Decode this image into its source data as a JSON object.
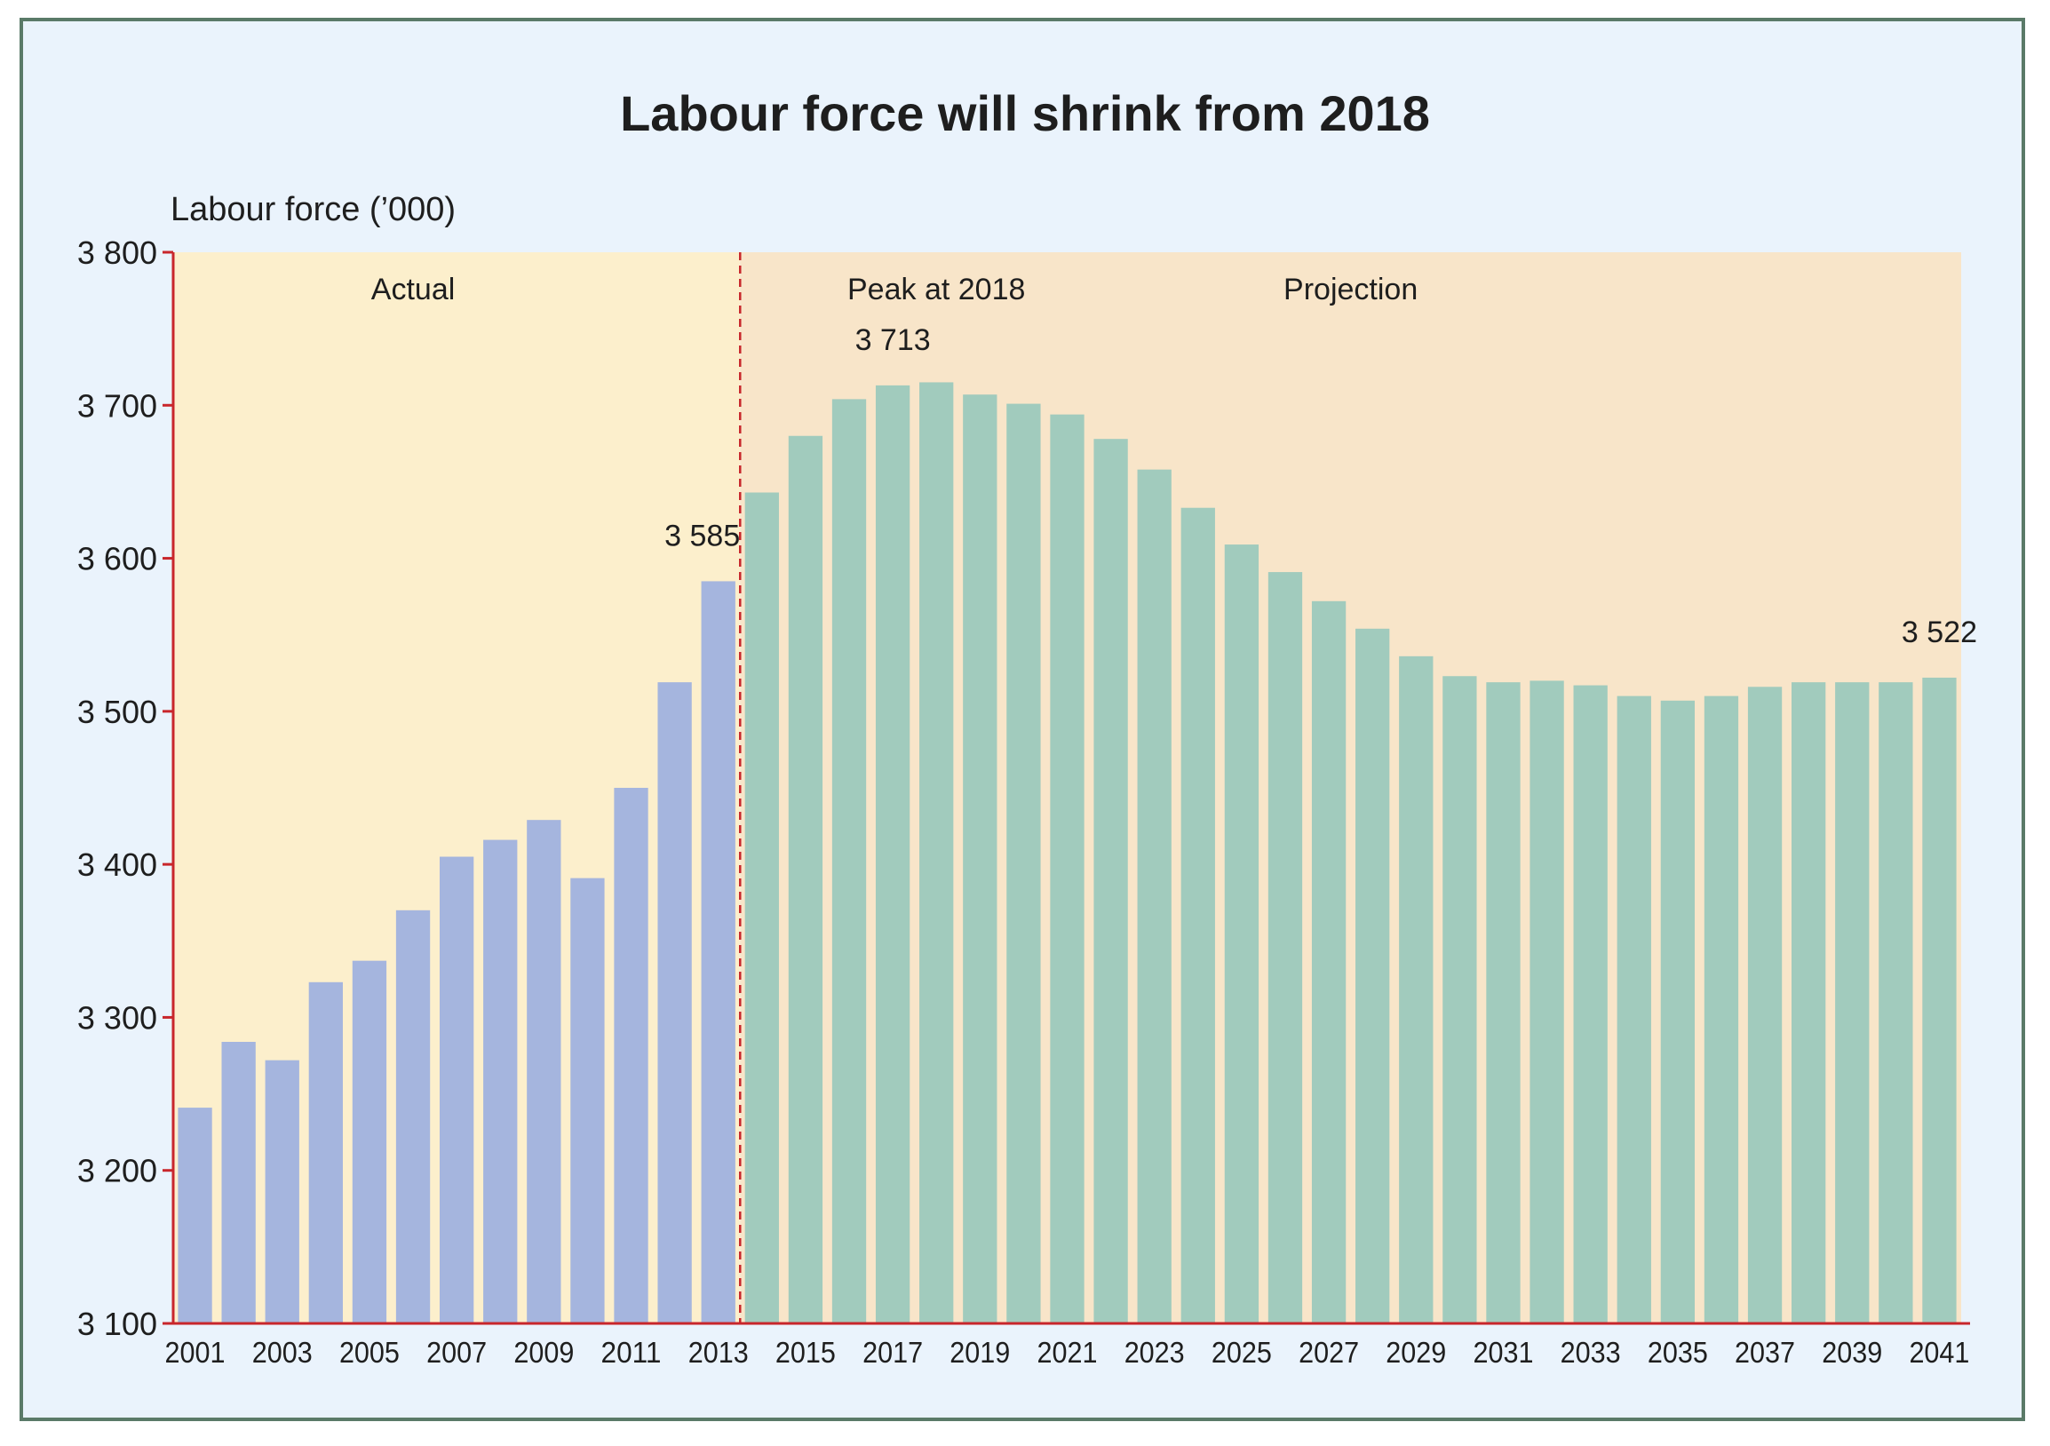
{
  "chart_data": {
    "type": "bar",
    "title": "Labour force will shrink from 2018",
    "ylabel": "Labour force (’000)",
    "xlabel": "",
    "ylim": [
      3100,
      3800
    ],
    "yticks": [
      3100,
      3200,
      3300,
      3400,
      3500,
      3600,
      3700,
      3800
    ],
    "ytick_labels": [
      "3 100",
      "3 200",
      "3 300",
      "3 400",
      "3 500",
      "3 600",
      "3 700",
      "3 800"
    ],
    "xtick_labels": [
      "2001",
      "2003",
      "2005",
      "2007",
      "2009",
      "2011",
      "2013",
      "2015",
      "2017",
      "2019",
      "2021",
      "2023",
      "2025",
      "2027",
      "2029",
      "2031",
      "2033",
      "2035",
      "2037",
      "2039",
      "2041"
    ],
    "categories": [
      "2001",
      "2002",
      "2003",
      "2004",
      "2005",
      "2006",
      "2007",
      "2008",
      "2009",
      "2010",
      "2011",
      "2012",
      "2013",
      "2014",
      "2015",
      "2016",
      "2017",
      "2018",
      "2019",
      "2020",
      "2021",
      "2022",
      "2023",
      "2024",
      "2025",
      "2026",
      "2027",
      "2028",
      "2029",
      "2030",
      "2031",
      "2032",
      "2033",
      "2034",
      "2035",
      "2036",
      "2037",
      "2038",
      "2039",
      "2040",
      "2041"
    ],
    "series": [
      {
        "name": "Actual",
        "color": "#a5b5de",
        "values": [
          3241,
          3284,
          3272,
          3323,
          3337,
          3370,
          3405,
          3416,
          3429,
          3391,
          3450,
          3519,
          3585,
          null,
          null,
          null,
          null,
          null,
          null,
          null,
          null,
          null,
          null,
          null,
          null,
          null,
          null,
          null,
          null,
          null,
          null,
          null,
          null,
          null,
          null,
          null,
          null,
          null,
          null,
          null,
          null
        ]
      },
      {
        "name": "Projection",
        "color": "#a1cbbd",
        "values": [
          null,
          null,
          null,
          null,
          null,
          null,
          null,
          null,
          null,
          null,
          null,
          null,
          null,
          3643,
          3680,
          3704,
          3713,
          3715,
          3707,
          3701,
          3694,
          3678,
          3658,
          3633,
          3609,
          3591,
          3572,
          3554,
          3536,
          3523,
          3519,
          3520,
          3517,
          3510,
          3507,
          3510,
          3516,
          3519,
          3519,
          3519,
          3522
        ]
      }
    ],
    "regions": [
      {
        "label": "Actual",
        "color": "#fcefcc"
      },
      {
        "label": "Projection",
        "color": "#f8e5c9"
      }
    ],
    "annotations": [
      {
        "text": "Peak at 2018"
      },
      {
        "text": "3 713",
        "category": "2017"
      },
      {
        "text": "3 585",
        "category": "2013"
      },
      {
        "text": "3 522",
        "category": "2041"
      }
    ],
    "divider": {
      "after_category": "2013",
      "style": "dashed",
      "color": "#c8262b"
    },
    "axis_color": "#c8262b",
    "grid": false
  }
}
